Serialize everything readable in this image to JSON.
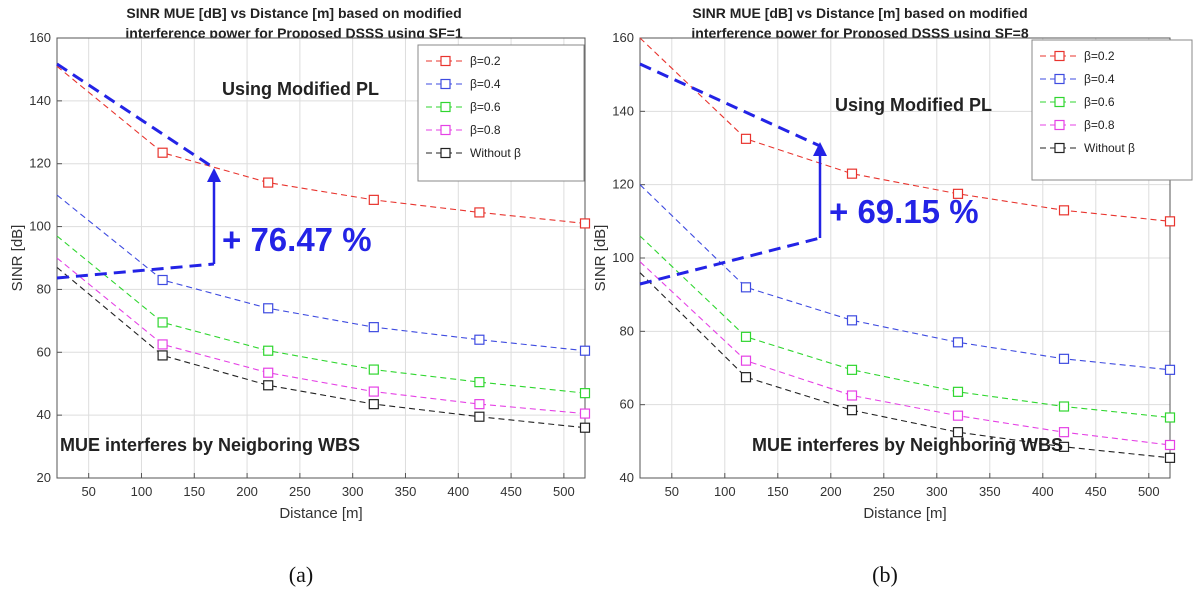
{
  "figure": {
    "panels": [
      {
        "title_line1": "SINR MUE [dB] vs Distance [m] based on modified",
        "title_line2": "interference power for Proposed DSSS using SF=1",
        "xlabel": "Distance [m]",
        "ylabel": "SINR [dB]",
        "annotation_top": "Using Modified PL",
        "annotation_bottom": "MUE interferes by Neigboring WBS",
        "gain": "+ 76.47 %",
        "caption": "(a)"
      },
      {
        "title_line1": "SINR MUE [dB] vs Distance [m] based on modified",
        "title_line2": "interference power for Proposed DSSS using SF=8",
        "xlabel": "Distance [m]",
        "ylabel": "SINR [dB]",
        "annotation_top": "Using Modified PL",
        "annotation_bottom": "MUE interferes by Neighboring WBS",
        "gain": "+ 69.15 %",
        "caption": "(b)"
      }
    ]
  },
  "colors": {
    "accent": "#2323e6",
    "beta_0_2": "#e8342e",
    "beta_0_4": "#3e4be0",
    "beta_0_6": "#2fd62f",
    "beta_0_8": "#e541e5",
    "without_beta": "#222222"
  },
  "chart_data": [
    {
      "type": "line",
      "title": "SINR MUE [dB] vs Distance [m] based on modified interference power for Proposed DSSS using SF=1",
      "xlabel": "Distance [m]",
      "ylabel": "SINR [dB]",
      "xlim": [
        20,
        520
      ],
      "ylim": [
        20,
        160
      ],
      "xticks": [
        50,
        100,
        150,
        200,
        250,
        300,
        350,
        400,
        450,
        500
      ],
      "yticks": [
        20,
        40,
        60,
        80,
        100,
        120,
        140,
        160
      ],
      "grid": true,
      "legend_position": "top-right",
      "markers_x": [
        120,
        220,
        320,
        420,
        520
      ],
      "series": [
        {
          "name": "β=0.2",
          "color_key": "beta_0_2",
          "x": [
            20,
            120,
            220,
            320,
            420,
            520
          ],
          "values": [
            151,
            123.5,
            114,
            108.5,
            104.5,
            101
          ]
        },
        {
          "name": "β=0.4",
          "color_key": "beta_0_4",
          "x": [
            20,
            120,
            220,
            320,
            420,
            520
          ],
          "values": [
            110,
            83,
            74,
            68,
            64,
            60.5
          ]
        },
        {
          "name": "β=0.6",
          "color_key": "beta_0_6",
          "x": [
            20,
            120,
            220,
            320,
            420,
            520
          ],
          "values": [
            97,
            69.5,
            60.5,
            54.5,
            50.5,
            47
          ]
        },
        {
          "name": "β=0.8",
          "color_key": "beta_0_8",
          "x": [
            20,
            120,
            220,
            320,
            420,
            520
          ],
          "values": [
            90,
            62.5,
            53.5,
            47.5,
            43.5,
            40.5
          ]
        },
        {
          "name": "Without β",
          "color_key": "without_beta",
          "x": [
            20,
            120,
            220,
            320,
            420,
            520
          ],
          "values": [
            87,
            59,
            49.5,
            43.5,
            39.5,
            36
          ]
        }
      ],
      "gain_label": "+ 76.47 %"
    },
    {
      "type": "line",
      "title": "SINR MUE [dB] vs Distance [m] based on modified interference power for Proposed DSSS using SF=8",
      "xlabel": "Distance [m]",
      "ylabel": "SINR [dB]",
      "xlim": [
        20,
        520
      ],
      "ylim": [
        40,
        160
      ],
      "xticks": [
        50,
        100,
        150,
        200,
        250,
        300,
        350,
        400,
        450,
        500
      ],
      "yticks": [
        40,
        60,
        80,
        100,
        120,
        140,
        160
      ],
      "grid": true,
      "legend_position": "top-right",
      "markers_x": [
        120,
        220,
        320,
        420,
        520
      ],
      "series": [
        {
          "name": "β=0.2",
          "color_key": "beta_0_2",
          "x": [
            20,
            120,
            220,
            320,
            420,
            520
          ],
          "values": [
            160,
            132.5,
            123,
            117.5,
            113,
            110
          ]
        },
        {
          "name": "β=0.4",
          "color_key": "beta_0_4",
          "x": [
            20,
            120,
            220,
            320,
            420,
            520
          ],
          "values": [
            120,
            92,
            83,
            77,
            72.5,
            69.5
          ]
        },
        {
          "name": "β=0.6",
          "color_key": "beta_0_6",
          "x": [
            20,
            120,
            220,
            320,
            420,
            520
          ],
          "values": [
            106,
            78.5,
            69.5,
            63.5,
            59.5,
            56.5
          ]
        },
        {
          "name": "β=0.8",
          "color_key": "beta_0_8",
          "x": [
            20,
            120,
            220,
            320,
            420,
            520
          ],
          "values": [
            99,
            72,
            62.5,
            57,
            52.5,
            49
          ]
        },
        {
          "name": "Without β",
          "color_key": "without_beta",
          "x": [
            20,
            120,
            220,
            320,
            420,
            520
          ],
          "values": [
            96,
            67.5,
            58.5,
            52.5,
            48.5,
            45.5
          ]
        }
      ],
      "gain_label": "+ 69.15 %"
    }
  ]
}
